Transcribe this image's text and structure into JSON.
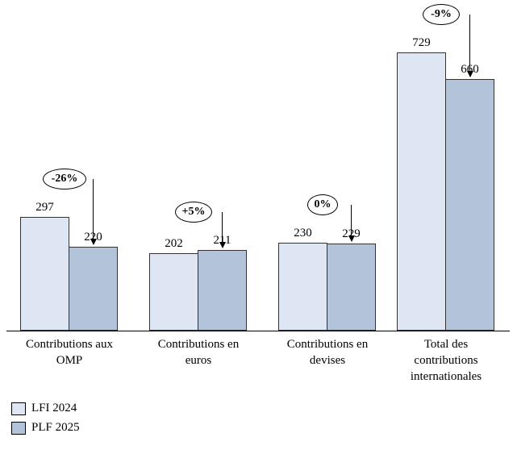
{
  "chart_data": {
    "type": "bar",
    "categories": [
      "Contributions aux OMP",
      "Contributions en euros",
      "Contributions en devises",
      "Total des contributions internationales"
    ],
    "series": [
      {
        "name": "LFI 2024",
        "color": "#dde6f2",
        "values": [
          297,
          202,
          230,
          729
        ]
      },
      {
        "name": "PLF 2025",
        "color": "#b3c3da",
        "values": [
          220,
          211,
          229,
          660
        ]
      }
    ],
    "change_labels": [
      "-26%",
      "+5%",
      "0%",
      "-9%"
    ],
    "title": "",
    "xlabel": "",
    "ylabel": "",
    "ylim": [
      0,
      780
    ],
    "grid": false,
    "legend_position": "bottom-left",
    "bar_border_color": "#333333",
    "annotation_style": "oval-with-down-arrow-to-second-bar"
  },
  "legend": {
    "items": [
      {
        "label": "LFI 2024",
        "color": "#dde6f2"
      },
      {
        "label": "PLF 2025",
        "color": "#b3c3da"
      }
    ]
  }
}
